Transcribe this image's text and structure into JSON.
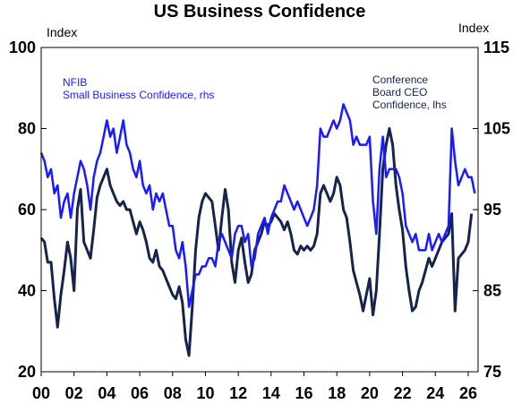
{
  "chart_data": {
    "type": "line",
    "title": "US Business Confidence",
    "left_axis": {
      "unit": "Index",
      "ylim": [
        20,
        100
      ],
      "ticks": [
        "20",
        "40",
        "60",
        "80",
        "100"
      ]
    },
    "right_axis": {
      "unit": "Index",
      "ylim": [
        75,
        115
      ],
      "ticks": [
        "75",
        "85",
        "95",
        "105",
        "115"
      ]
    },
    "x_axis": {
      "xlim": [
        2000,
        2026.6
      ],
      "tick_years": [
        2000,
        2002,
        2004,
        2006,
        2008,
        2010,
        2012,
        2014,
        2016,
        2018,
        2020,
        2022,
        2024,
        2026
      ],
      "tick_labels": [
        "00",
        "02",
        "04",
        "06",
        "08",
        "10",
        "12",
        "14",
        "16",
        "18",
        "20",
        "22",
        "24",
        "26"
      ]
    },
    "grid": false,
    "colors": {
      "nfib": "#1a1aff",
      "ceo": "#14244d"
    },
    "series": [
      {
        "name": "NFIB Small Business Confidence, rhs",
        "axis": "right",
        "label_lines": [
          "NFIB",
          "Small Business Confidence, rhs"
        ],
        "points": [
          [
            2000.0,
            102
          ],
          [
            2000.2,
            101
          ],
          [
            2000.4,
            99
          ],
          [
            2000.6,
            100
          ],
          [
            2000.8,
            97
          ],
          [
            2001.0,
            98
          ],
          [
            2001.2,
            94
          ],
          [
            2001.4,
            96
          ],
          [
            2001.6,
            97
          ],
          [
            2001.8,
            94
          ],
          [
            2002.0,
            97
          ],
          [
            2002.2,
            99
          ],
          [
            2002.4,
            101
          ],
          [
            2002.6,
            100
          ],
          [
            2002.8,
            98
          ],
          [
            2003.0,
            95
          ],
          [
            2003.2,
            99
          ],
          [
            2003.4,
            101
          ],
          [
            2003.6,
            102
          ],
          [
            2003.8,
            104
          ],
          [
            2004.0,
            106
          ],
          [
            2004.2,
            104
          ],
          [
            2004.4,
            105
          ],
          [
            2004.6,
            102
          ],
          [
            2004.8,
            104
          ],
          [
            2005.0,
            106
          ],
          [
            2005.2,
            103
          ],
          [
            2005.4,
            102
          ],
          [
            2005.6,
            100
          ],
          [
            2005.8,
            99
          ],
          [
            2006.0,
            101
          ],
          [
            2006.2,
            98
          ],
          [
            2006.4,
            97
          ],
          [
            2006.6,
            98
          ],
          [
            2006.8,
            95
          ],
          [
            2007.0,
            97
          ],
          [
            2007.2,
            96
          ],
          [
            2007.4,
            97
          ],
          [
            2007.6,
            95
          ],
          [
            2007.8,
            93
          ],
          [
            2008.0,
            93
          ],
          [
            2008.2,
            90
          ],
          [
            2008.4,
            89
          ],
          [
            2008.6,
            91
          ],
          [
            2008.8,
            88
          ],
          [
            2009.0,
            83
          ],
          [
            2009.2,
            85
          ],
          [
            2009.4,
            87
          ],
          [
            2009.6,
            87
          ],
          [
            2009.8,
            88
          ],
          [
            2010.0,
            88
          ],
          [
            2010.2,
            89
          ],
          [
            2010.4,
            89
          ],
          [
            2010.6,
            88
          ],
          [
            2010.8,
            91
          ],
          [
            2011.0,
            92
          ],
          [
            2011.2,
            91
          ],
          [
            2011.4,
            90
          ],
          [
            2011.6,
            89
          ],
          [
            2011.8,
            92
          ],
          [
            2012.0,
            93
          ],
          [
            2012.2,
            93
          ],
          [
            2012.4,
            91
          ],
          [
            2012.6,
            92
          ],
          [
            2012.8,
            88
          ],
          [
            2013.0,
            89
          ],
          [
            2013.2,
            92
          ],
          [
            2013.4,
            93
          ],
          [
            2013.6,
            94
          ],
          [
            2013.8,
            92
          ],
          [
            2014.0,
            94
          ],
          [
            2014.2,
            95
          ],
          [
            2014.4,
            96
          ],
          [
            2014.6,
            96
          ],
          [
            2014.8,
            98
          ],
          [
            2015.0,
            97
          ],
          [
            2015.2,
            96
          ],
          [
            2015.4,
            95
          ],
          [
            2015.6,
            96
          ],
          [
            2015.8,
            95
          ],
          [
            2016.0,
            94
          ],
          [
            2016.2,
            93
          ],
          [
            2016.4,
            94
          ],
          [
            2016.6,
            95
          ],
          [
            2016.8,
            98
          ],
          [
            2017.0,
            105
          ],
          [
            2017.2,
            104
          ],
          [
            2017.4,
            104
          ],
          [
            2017.6,
            105
          ],
          [
            2017.8,
            106
          ],
          [
            2018.0,
            105
          ],
          [
            2018.2,
            106
          ],
          [
            2018.4,
            108
          ],
          [
            2018.6,
            107
          ],
          [
            2018.8,
            106
          ],
          [
            2019.0,
            103
          ],
          [
            2019.2,
            104
          ],
          [
            2019.4,
            103
          ],
          [
            2019.6,
            103
          ],
          [
            2019.8,
            103
          ],
          [
            2020.0,
            104
          ],
          [
            2020.2,
            96
          ],
          [
            2020.4,
            92
          ],
          [
            2020.6,
            100
          ],
          [
            2020.8,
            104
          ],
          [
            2021.0,
            99
          ],
          [
            2021.2,
            100
          ],
          [
            2021.4,
            100
          ],
          [
            2021.6,
            100
          ],
          [
            2021.8,
            99
          ],
          [
            2022.0,
            97
          ],
          [
            2022.2,
            93
          ],
          [
            2022.4,
            92
          ],
          [
            2022.6,
            91
          ],
          [
            2022.8,
            92
          ],
          [
            2023.0,
            90
          ],
          [
            2023.2,
            90
          ],
          [
            2023.4,
            90
          ],
          [
            2023.6,
            92
          ],
          [
            2023.8,
            90
          ],
          [
            2024.0,
            91
          ],
          [
            2024.2,
            92
          ],
          [
            2024.4,
            91
          ],
          [
            2024.6,
            92
          ],
          [
            2024.8,
            93
          ],
          [
            2025.0,
            105
          ],
          [
            2025.2,
            101
          ],
          [
            2025.4,
            98
          ],
          [
            2025.6,
            99
          ],
          [
            2025.8,
            100
          ],
          [
            2026.0,
            99
          ],
          [
            2026.2,
            99
          ],
          [
            2026.4,
            97
          ]
        ]
      },
      {
        "name": "Conference Board CEO Confidence, lhs",
        "axis": "left",
        "label_lines": [
          "Conference",
          "Board CEO",
          "Confidence, lhs"
        ],
        "points": [
          [
            2000.0,
            53
          ],
          [
            2000.2,
            52
          ],
          [
            2000.4,
            47
          ],
          [
            2000.6,
            47
          ],
          [
            2000.8,
            38
          ],
          [
            2001.0,
            31
          ],
          [
            2001.2,
            39
          ],
          [
            2001.4,
            45
          ],
          [
            2001.6,
            52
          ],
          [
            2001.8,
            48
          ],
          [
            2002.0,
            40
          ],
          [
            2002.2,
            60
          ],
          [
            2002.4,
            65
          ],
          [
            2002.6,
            52
          ],
          [
            2002.8,
            50
          ],
          [
            2003.0,
            48
          ],
          [
            2003.2,
            55
          ],
          [
            2003.4,
            63
          ],
          [
            2003.6,
            66
          ],
          [
            2003.8,
            68
          ],
          [
            2004.0,
            70
          ],
          [
            2004.2,
            66
          ],
          [
            2004.4,
            64
          ],
          [
            2004.6,
            62
          ],
          [
            2004.8,
            61
          ],
          [
            2005.0,
            62
          ],
          [
            2005.2,
            60
          ],
          [
            2005.4,
            60
          ],
          [
            2005.6,
            57
          ],
          [
            2005.8,
            54
          ],
          [
            2006.0,
            57
          ],
          [
            2006.2,
            55
          ],
          [
            2006.4,
            52
          ],
          [
            2006.6,
            48
          ],
          [
            2006.8,
            47
          ],
          [
            2007.0,
            50
          ],
          [
            2007.2,
            46
          ],
          [
            2007.4,
            45
          ],
          [
            2007.6,
            43
          ],
          [
            2007.8,
            41
          ],
          [
            2008.0,
            39
          ],
          [
            2008.2,
            38
          ],
          [
            2008.4,
            41
          ],
          [
            2008.6,
            37
          ],
          [
            2008.8,
            28
          ],
          [
            2009.0,
            24
          ],
          [
            2009.2,
            36
          ],
          [
            2009.4,
            50
          ],
          [
            2009.6,
            58
          ],
          [
            2009.8,
            62
          ],
          [
            2010.0,
            64
          ],
          [
            2010.2,
            63
          ],
          [
            2010.4,
            62
          ],
          [
            2010.6,
            56
          ],
          [
            2010.8,
            50
          ],
          [
            2011.0,
            58
          ],
          [
            2011.2,
            65
          ],
          [
            2011.4,
            60
          ],
          [
            2011.6,
            47
          ],
          [
            2011.8,
            42
          ],
          [
            2012.0,
            50
          ],
          [
            2012.2,
            53
          ],
          [
            2012.4,
            47
          ],
          [
            2012.6,
            42
          ],
          [
            2012.8,
            44
          ],
          [
            2013.0,
            50
          ],
          [
            2013.2,
            52
          ],
          [
            2013.4,
            54
          ],
          [
            2013.6,
            57
          ],
          [
            2013.8,
            56
          ],
          [
            2014.0,
            57
          ],
          [
            2014.2,
            59
          ],
          [
            2014.4,
            58
          ],
          [
            2014.6,
            57
          ],
          [
            2014.8,
            55
          ],
          [
            2015.0,
            57
          ],
          [
            2015.2,
            54
          ],
          [
            2015.4,
            50
          ],
          [
            2015.6,
            49
          ],
          [
            2015.8,
            51
          ],
          [
            2016.0,
            50
          ],
          [
            2016.2,
            51
          ],
          [
            2016.4,
            50
          ],
          [
            2016.6,
            51
          ],
          [
            2016.8,
            54
          ],
          [
            2017.0,
            64
          ],
          [
            2017.2,
            66
          ],
          [
            2017.4,
            64
          ],
          [
            2017.6,
            62
          ],
          [
            2017.8,
            64
          ],
          [
            2018.0,
            68
          ],
          [
            2018.2,
            66
          ],
          [
            2018.4,
            60
          ],
          [
            2018.6,
            58
          ],
          [
            2018.8,
            52
          ],
          [
            2019.0,
            45
          ],
          [
            2019.2,
            42
          ],
          [
            2019.4,
            39
          ],
          [
            2019.6,
            35
          ],
          [
            2019.8,
            39
          ],
          [
            2020.0,
            43
          ],
          [
            2020.2,
            34
          ],
          [
            2020.4,
            40
          ],
          [
            2020.6,
            54
          ],
          [
            2020.8,
            70
          ],
          [
            2021.0,
            76
          ],
          [
            2021.2,
            80
          ],
          [
            2021.4,
            76
          ],
          [
            2021.6,
            66
          ],
          [
            2021.8,
            60
          ],
          [
            2022.0,
            55
          ],
          [
            2022.2,
            46
          ],
          [
            2022.4,
            40
          ],
          [
            2022.6,
            35
          ],
          [
            2022.8,
            36
          ],
          [
            2023.0,
            40
          ],
          [
            2023.2,
            42
          ],
          [
            2023.4,
            45
          ],
          [
            2023.6,
            48
          ],
          [
            2023.8,
            46
          ],
          [
            2024.0,
            48
          ],
          [
            2024.2,
            50
          ],
          [
            2024.4,
            52
          ],
          [
            2024.6,
            53
          ],
          [
            2024.8,
            54
          ],
          [
            2025.0,
            59
          ],
          [
            2025.2,
            35
          ],
          [
            2025.4,
            48
          ],
          [
            2025.6,
            49
          ],
          [
            2025.8,
            50
          ],
          [
            2026.0,
            52
          ],
          [
            2026.2,
            59
          ]
        ]
      }
    ]
  }
}
